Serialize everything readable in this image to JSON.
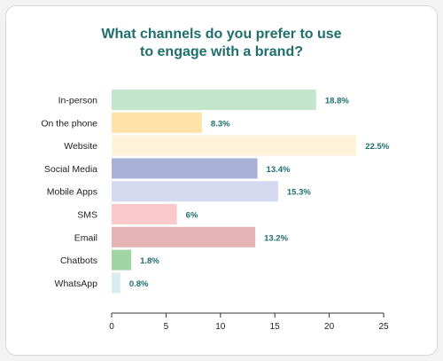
{
  "chart_data": {
    "type": "bar",
    "orientation": "horizontal",
    "title_lines": [
      "What channels do you prefer to use",
      "to engage with a brand?"
    ],
    "categories": [
      "In-person",
      "On the phone",
      "Website",
      "Social Media",
      "Mobile Apps",
      "SMS",
      "Email",
      "Chatbots",
      "WhatsApp"
    ],
    "values": [
      18.8,
      8.3,
      22.5,
      13.4,
      15.3,
      6,
      13.2,
      1.8,
      0.8
    ],
    "value_labels": [
      "18.8%",
      "8.3%",
      "22.5%",
      "13.4%",
      "15.3%",
      "6%",
      "13.2%",
      "1.8%",
      "0.8%"
    ],
    "colors": [
      "#c3e6cb",
      "#fde3a7",
      "#fff3d9",
      "#a9b0d6",
      "#d5d9ef",
      "#fbc9c9",
      "#e4b3b3",
      "#9fd5a2",
      "#d8ecf0"
    ],
    "xlim": [
      0,
      25
    ],
    "xticks": [
      "0",
      "5",
      "10",
      "15",
      "20",
      "25"
    ],
    "grid": false,
    "legend": "none"
  }
}
